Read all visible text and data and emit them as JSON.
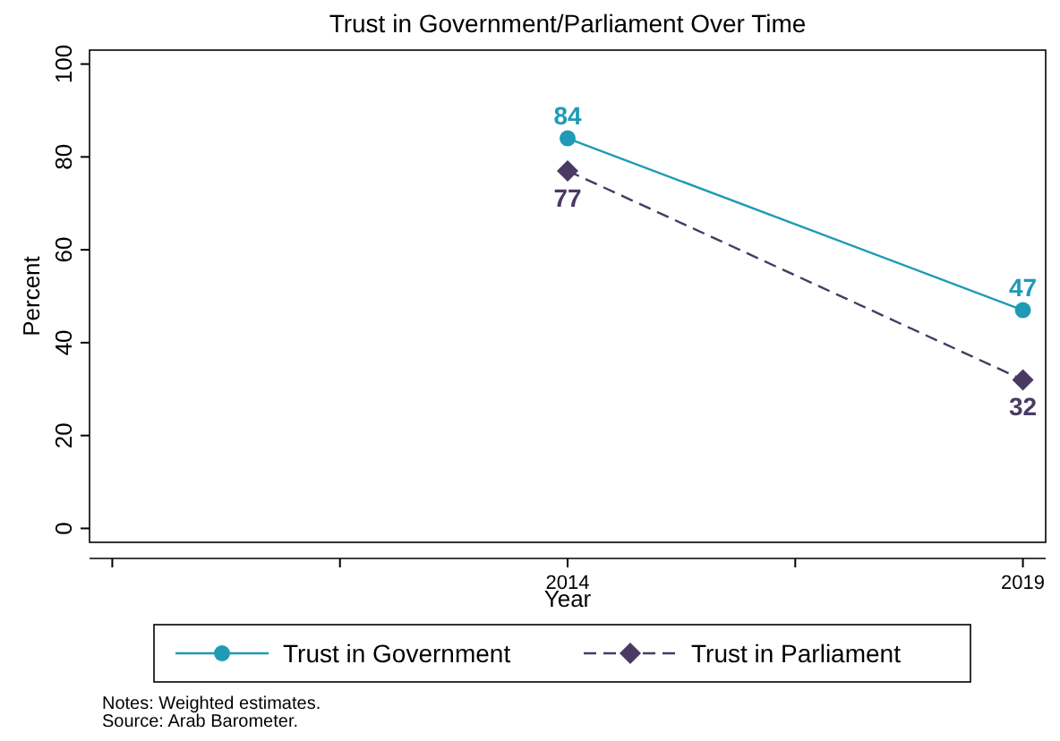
{
  "chart_data": {
    "type": "line",
    "title": "Trust in Government/Parliament Over Time",
    "xlabel": "Year",
    "ylabel": "Percent",
    "x": [
      2014,
      2019
    ],
    "series": [
      {
        "name": "Trust in Government",
        "color": "#1f9bb5",
        "values": [
          84,
          47
        ],
        "marker": "circle",
        "line_style": "solid"
      },
      {
        "name": "Trust in Parliament",
        "color": "#4a3a63",
        "values": [
          77,
          32
        ],
        "marker": "diamond",
        "line_style": "dashed"
      }
    ],
    "xlim": [
      2008.75,
      2019.25
    ],
    "xticks": [
      {
        "value": 2009,
        "label": null
      },
      {
        "value": 2011.5,
        "label": null
      },
      2014,
      {
        "value": 2016.5,
        "label": null
      },
      2019
    ],
    "ylim": [
      -3,
      103
    ],
    "yticks": [
      0,
      20,
      40,
      60,
      80,
      100
    ],
    "data_labels": true,
    "legend": "bottom",
    "annotations": [
      "Notes: Weighted estimates.",
      "Source: Arab Barometer."
    ]
  }
}
